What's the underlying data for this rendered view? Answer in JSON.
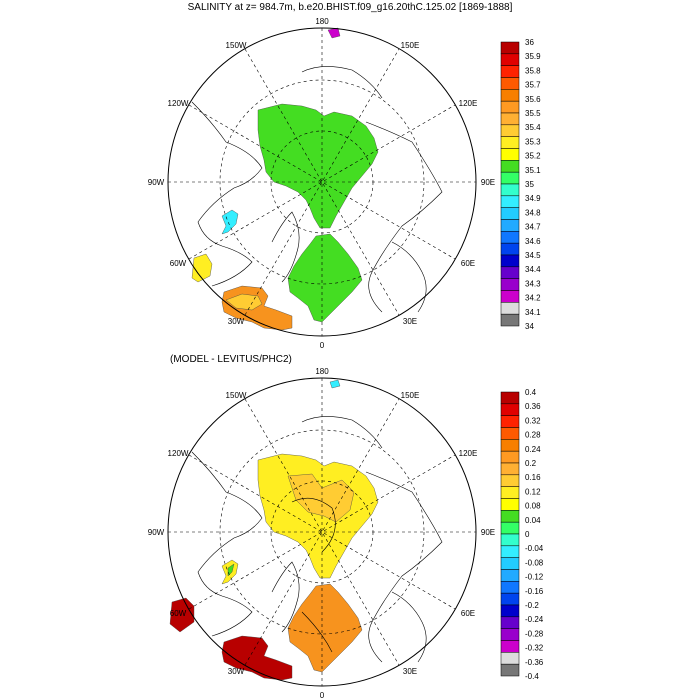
{
  "title": "SALINITY at z= 984.7m, b.e20.BHIST.f09_g16.20thC.125.02 [1869-1888]",
  "subtitle": "(MODEL - LEVITUS/PHC2)",
  "map_labels": {
    "top": "180",
    "bottom": "0",
    "left": "90W",
    "right": "90E",
    "w150": "150W",
    "e150": "150E",
    "w120": "120W",
    "e120": "120E",
    "w60": "60W",
    "e60": "60E",
    "w30": "30W",
    "e30": "30E"
  },
  "colorbar_top": {
    "labels": [
      "36",
      "35.9",
      "35.8",
      "35.7",
      "35.6",
      "35.5",
      "35.4",
      "35.3",
      "35.2",
      "35.1",
      "35",
      "34.9",
      "34.8",
      "34.7",
      "34.6",
      "34.5",
      "34.4",
      "34.3",
      "34.2",
      "34.1",
      "34"
    ],
    "colors": [
      "#b80000",
      "#e00000",
      "#ff2200",
      "#ff5a00",
      "#f77f00",
      "#ff9a22",
      "#ffb033",
      "#ffcc33",
      "#ffee22",
      "#ffff00",
      "#44dd22",
      "#33ff66",
      "#33ffcc",
      "#33eeff",
      "#22ccff",
      "#22aaff",
      "#1177ff",
      "#0044ee",
      "#0000cc",
      "#6600cc",
      "#9900cc",
      "#cc00cc",
      "#dddddd",
      "#777777"
    ]
  },
  "colorbar_bottom": {
    "labels": [
      "0.4",
      "0.36",
      "0.32",
      "0.28",
      "0.24",
      "0.2",
      "0.16",
      "0.12",
      "0.08",
      "0.04",
      "0",
      "-0.04",
      "-0.08",
      "-0.12",
      "-0.16",
      "-0.2",
      "-0.24",
      "-0.28",
      "-0.32",
      "-0.36",
      "-0.4"
    ],
    "colors": [
      "#b80000",
      "#e00000",
      "#ff2200",
      "#ff5a00",
      "#f77f00",
      "#ff9a22",
      "#ffb033",
      "#ffcc33",
      "#ffee22",
      "#ffff00",
      "#44dd22",
      "#33ff66",
      "#33ffcc",
      "#33eeff",
      "#22ccff",
      "#22aaff",
      "#1177ff",
      "#0044ee",
      "#0000cc",
      "#6600cc",
      "#9900cc",
      "#cc00cc",
      "#dddddd",
      "#777777"
    ]
  },
  "fill_colors": {
    "green": "#44dd22",
    "cyan": "#33eeff",
    "yellow": "#ffee22",
    "light_orange": "#ffcc33",
    "orange": "#f7931e",
    "dark_red": "#b80000",
    "magenta": "#cc00cc"
  }
}
